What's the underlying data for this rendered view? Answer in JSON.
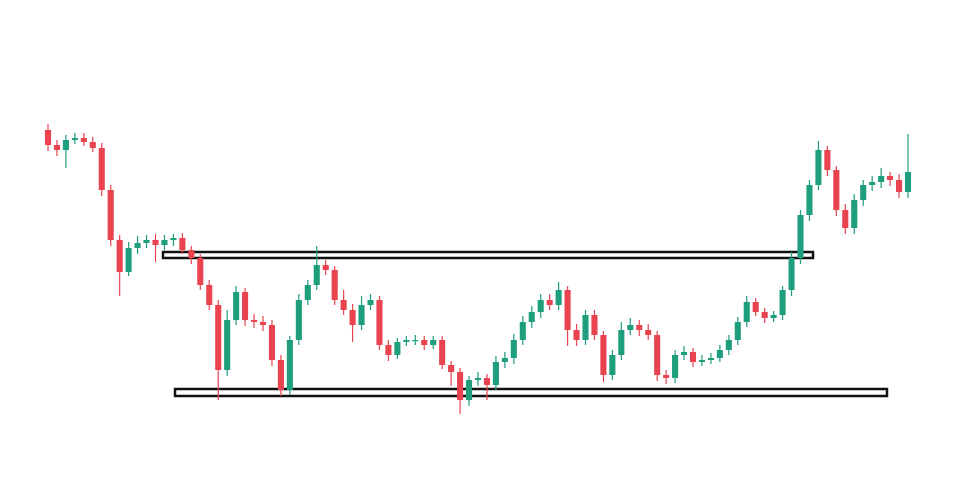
{
  "chart_data": {
    "type": "candlestick",
    "up_color": "#1f9e7e",
    "down_color": "#e8434f",
    "ylim": [
      0,
      486
    ],
    "open": [
      356,
      341,
      336,
      346,
      348,
      344,
      338,
      296,
      246,
      214,
      238,
      243,
      246,
      241,
      246,
      248,
      236,
      228,
      201,
      181,
      116,
      166,
      194,
      166,
      164,
      161,
      126,
      96,
      146,
      186,
      201,
      221,
      216,
      186,
      176,
      161,
      181,
      186,
      141,
      131,
      144,
      146,
      146,
      141,
      146,
      121,
      114,
      86,
      106,
      108,
      101,
      124,
      128,
      146,
      164,
      174,
      186,
      181,
      196,
      156,
      146,
      171,
      151,
      111,
      131,
      156,
      161,
      156,
      151,
      111,
      108,
      131,
      134,
      124,
      126,
      128,
      136,
      146,
      164,
      184,
      174,
      168,
      171,
      196,
      228,
      271,
      301,
      336,
      316,
      276,
      258,
      286,
      301,
      304,
      310,
      306,
      294
    ],
    "high": [
      362,
      346,
      351,
      353,
      353,
      349,
      343,
      301,
      251,
      244,
      250,
      251,
      252,
      251,
      252,
      253,
      240,
      232,
      206,
      186,
      176,
      200,
      198,
      172,
      170,
      166,
      131,
      150,
      192,
      206,
      240,
      226,
      220,
      196,
      182,
      190,
      192,
      190,
      146,
      148,
      150,
      151,
      150,
      150,
      150,
      125,
      118,
      110,
      114,
      112,
      130,
      134,
      152,
      170,
      180,
      192,
      192,
      204,
      200,
      162,
      176,
      176,
      155,
      136,
      164,
      168,
      166,
      162,
      155,
      116,
      136,
      140,
      138,
      131,
      133,
      141,
      151,
      169,
      190,
      188,
      178,
      175,
      200,
      234,
      276,
      306,
      345,
      340,
      320,
      282,
      292,
      306,
      310,
      318,
      314,
      312,
      352
    ],
    "low": [
      335,
      330,
      318,
      342,
      340,
      334,
      290,
      240,
      190,
      210,
      232,
      238,
      224,
      236,
      240,
      232,
      222,
      196,
      176,
      86,
      110,
      161,
      160,
      158,
      155,
      120,
      90,
      91,
      141,
      181,
      196,
      211,
      181,
      171,
      144,
      156,
      176,
      136,
      125,
      127,
      140,
      141,
      136,
      137,
      117,
      100,
      72,
      80,
      100,
      86,
      96,
      118,
      122,
      141,
      158,
      168,
      176,
      176,
      140,
      140,
      141,
      146,
      104,
      106,
      126,
      151,
      150,
      146,
      105,
      102,
      103,
      126,
      119,
      120,
      122,
      124,
      131,
      141,
      159,
      170,
      163,
      164,
      166,
      190,
      222,
      265,
      296,
      310,
      270,
      252,
      252,
      280,
      295,
      298,
      300,
      288,
      288
    ],
    "close": [
      341,
      336,
      346,
      348,
      344,
      338,
      296,
      246,
      214,
      238,
      243,
      246,
      241,
      246,
      248,
      236,
      228,
      201,
      181,
      116,
      166,
      194,
      166,
      164,
      161,
      126,
      96,
      146,
      186,
      201,
      221,
      216,
      186,
      176,
      161,
      181,
      186,
      141,
      131,
      144,
      146,
      146,
      141,
      146,
      121,
      114,
      86,
      106,
      108,
      101,
      124,
      128,
      146,
      164,
      174,
      186,
      181,
      196,
      156,
      146,
      171,
      151,
      111,
      131,
      156,
      161,
      156,
      151,
      111,
      108,
      131,
      134,
      124,
      126,
      128,
      136,
      146,
      164,
      184,
      174,
      168,
      171,
      196,
      228,
      271,
      301,
      336,
      316,
      276,
      258,
      286,
      301,
      304,
      310,
      306,
      294,
      314
    ]
  }
}
